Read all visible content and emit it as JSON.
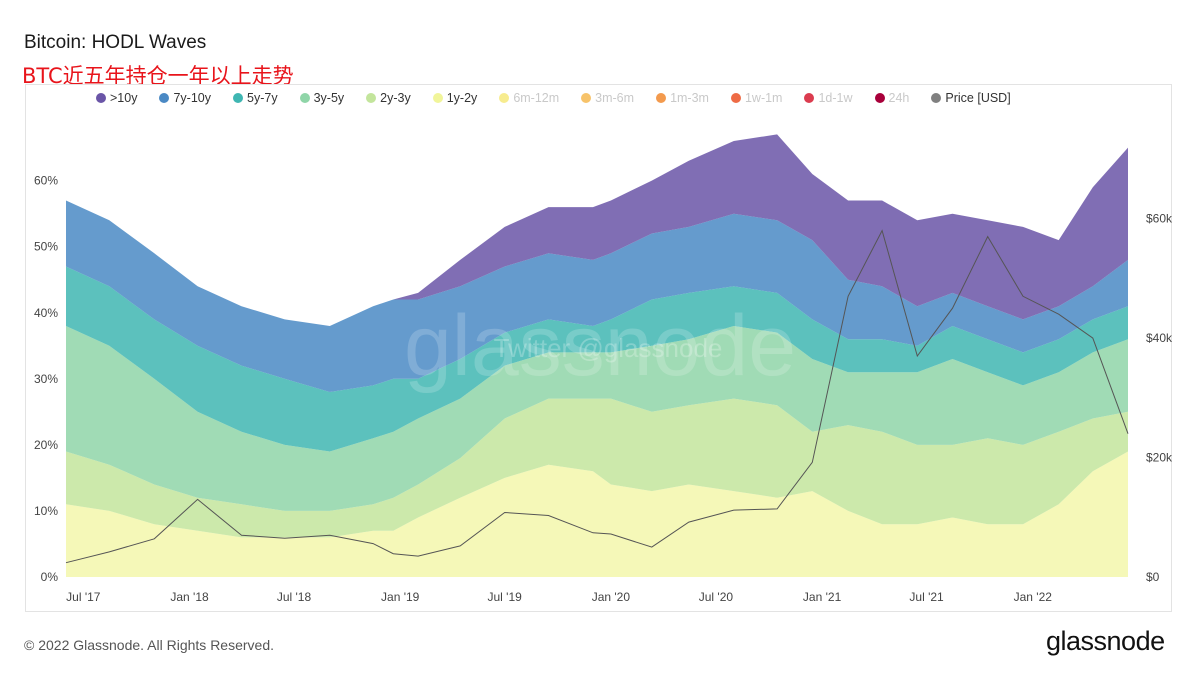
{
  "header": {
    "title": "Bitcoin: HODL Waves",
    "subtitle": "BTC近五年持仓一年以上走势"
  },
  "footer": {
    "copyright": "© 2022 Glassnode. All Rights Reserved.",
    "brand": "glassnode"
  },
  "watermark": {
    "text": "glassnode",
    "subtext": "Twitter @glassnode"
  },
  "legend": [
    {
      "label": ">10y",
      "color": "#6a55a7",
      "active": true
    },
    {
      "label": "7y-10y",
      "color": "#4a89c4",
      "active": true
    },
    {
      "label": "5y-7y",
      "color": "#3fb6b2",
      "active": true
    },
    {
      "label": "3y-5y",
      "color": "#8fd5a8",
      "active": true
    },
    {
      "label": "2y-3y",
      "color": "#c3e59c",
      "active": true
    },
    {
      "label": "1y-2y",
      "color": "#f1f59a",
      "active": true
    },
    {
      "label": "6m-12m",
      "color": "#f7ec8f",
      "active": false
    },
    {
      "label": "3m-6m",
      "color": "#f7c36a",
      "active": false
    },
    {
      "label": "1m-3m",
      "color": "#f39a4d",
      "active": false
    },
    {
      "label": "1w-1m",
      "color": "#ee6b45",
      "active": false
    },
    {
      "label": "1d-1w",
      "color": "#db3c4f",
      "active": false
    },
    {
      "label": "24h",
      "color": "#a8003a",
      "active": false
    },
    {
      "label": "Price [USD]",
      "color": "#808080",
      "active": true
    }
  ],
  "chart_data": {
    "type": "area",
    "stacked": true,
    "title": "Bitcoin: HODL Waves",
    "x": [
      "2017-06-01",
      "2017-08-15",
      "2017-11-01",
      "2018-01-15",
      "2018-04-01",
      "2018-06-15",
      "2018-09-01",
      "2018-11-15",
      "2018-12-20",
      "2019-02-01",
      "2019-04-15",
      "2019-07-01",
      "2019-09-15",
      "2019-12-01",
      "2020-01-01",
      "2020-03-12",
      "2020-05-15",
      "2020-08-01",
      "2020-10-15",
      "2020-12-15",
      "2021-02-15",
      "2021-04-15",
      "2021-06-15",
      "2021-08-15",
      "2021-10-15",
      "2021-12-15",
      "2022-02-15",
      "2022-04-15",
      "2022-06-15"
    ],
    "series": [
      {
        "name": "1y-2y",
        "values": [
          11,
          10,
          8,
          7,
          6,
          6,
          6,
          7,
          7,
          9,
          12,
          15,
          17,
          16,
          14,
          13,
          14,
          13,
          12,
          13,
          10,
          8,
          8,
          9,
          8,
          8,
          11,
          16,
          19
        ]
      },
      {
        "name": "2y-3y",
        "values": [
          8,
          7,
          6,
          5,
          5,
          4,
          4,
          4,
          5,
          5,
          6,
          9,
          10,
          11,
          13,
          12,
          12,
          14,
          14,
          9,
          13,
          14,
          12,
          11,
          13,
          12,
          11,
          8,
          6
        ]
      },
      {
        "name": "3y-5y",
        "values": [
          19,
          18,
          16,
          13,
          11,
          10,
          9,
          10,
          10,
          10,
          9,
          8,
          7,
          7,
          7,
          10,
          10,
          11,
          11,
          11,
          8,
          9,
          11,
          13,
          10,
          9,
          9,
          10,
          11
        ]
      },
      {
        "name": "5y-7y",
        "values": [
          9,
          9,
          9,
          10,
          10,
          10,
          9,
          8,
          8,
          6,
          6,
          5,
          5,
          4,
          5,
          7,
          7,
          6,
          6,
          6,
          5,
          5,
          4,
          5,
          5,
          5,
          5,
          5,
          5
        ]
      },
      {
        "name": "7y-10y",
        "values": [
          10,
          10,
          10,
          9,
          9,
          9,
          10,
          12,
          12,
          12,
          11,
          10,
          10,
          10,
          10,
          10,
          10,
          11,
          11,
          12,
          9,
          8,
          6,
          5,
          5,
          5,
          5,
          5,
          7
        ]
      },
      {
        "name": ">10y",
        "values": [
          0,
          0,
          0,
          0,
          0,
          0,
          0,
          0,
          0,
          1,
          4,
          6,
          7,
          8,
          8,
          8,
          10,
          11,
          13,
          10,
          12,
          13,
          13,
          12,
          13,
          14,
          10,
          15,
          17
        ]
      },
      {
        "name": "Price [USD]",
        "axis": "right",
        "values": [
          2400,
          4200,
          6400,
          13000,
          7000,
          6500,
          7000,
          5600,
          3900,
          3500,
          5200,
          10800,
          10300,
          7400,
          7200,
          5000,
          9200,
          11200,
          11400,
          19200,
          47000,
          58000,
          37000,
          45000,
          57000,
          47000,
          44000,
          40000,
          24000
        ]
      }
    ],
    "yaxis_left": {
      "ticks": [
        "0%",
        "10%",
        "20%",
        "30%",
        "40%",
        "50%",
        "60%"
      ],
      "ylim": [
        0,
        66
      ]
    },
    "yaxis_right": {
      "ticks": [
        "$0",
        "$20k",
        "$40k",
        "$60k"
      ],
      "ylim": [
        0,
        73000
      ]
    },
    "xaxis": {
      "ticks": [
        "Jul '17",
        "Jan '18",
        "Jul '18",
        "Jan '19",
        "Jul '19",
        "Jan '20",
        "Jul '20",
        "Jan '21",
        "Jul '21",
        "Jan '22"
      ]
    },
    "grid": false,
    "legend_position": "top"
  }
}
